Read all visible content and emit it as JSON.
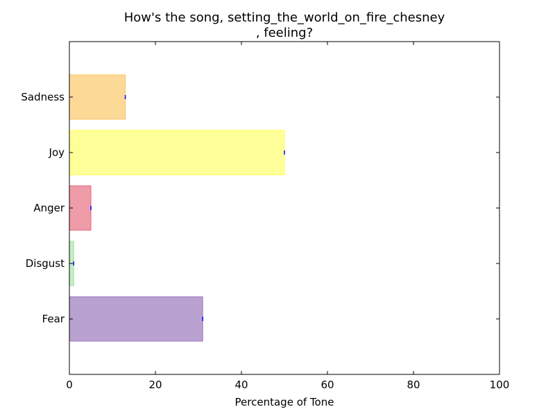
{
  "chart_data": {
    "type": "bar",
    "orientation": "horizontal",
    "title_lines": [
      "How's the song, setting_the_world_on_fire_chesney",
      ", feeling?"
    ],
    "xlabel": "Percentage of Tone",
    "ylabel": "",
    "xlim": [
      0,
      100
    ],
    "x_ticks": [
      0,
      20,
      40,
      60,
      80,
      100
    ],
    "categories": [
      "Fear",
      "Disgust",
      "Anger",
      "Joy",
      "Sadness"
    ],
    "values": [
      31,
      1,
      5,
      50,
      13
    ],
    "colors": [
      "#b9a2cf",
      "#c3efc3",
      "#ef9ba8",
      "#ffff99",
      "#fdd998"
    ],
    "edge_colors": [
      "#9d74c4",
      "#9fe09f",
      "#e8607a",
      "#ffff4d",
      "#fbc56a"
    ],
    "grid": false
  }
}
